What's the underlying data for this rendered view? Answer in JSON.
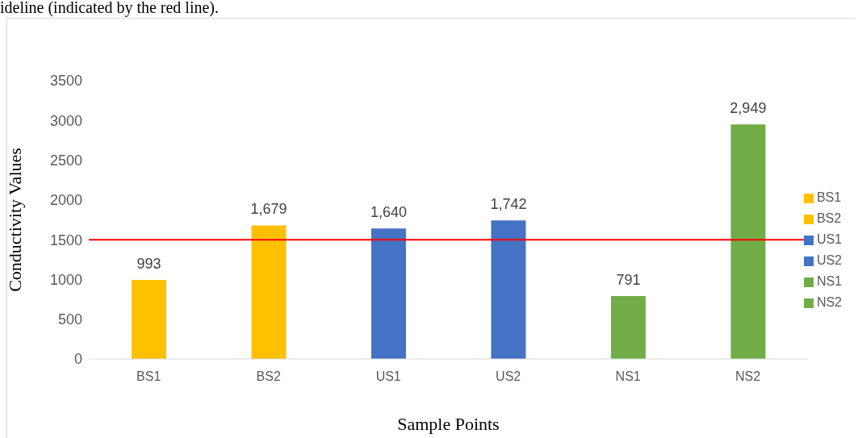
{
  "chart_data": {
    "type": "bar",
    "xlabel": "Sample Points",
    "ylabel": "Conductivity Values",
    "annotations": [
      "ideline (indicated by the red line)."
    ],
    "categories": [
      "BS1",
      "BS2",
      "US1",
      "US2",
      "NS1",
      "NS2"
    ],
    "stacked": true,
    "series": [
      {
        "name": "BS1",
        "color": "#ffc000",
        "values": [
          993,
          null,
          null,
          null,
          null,
          null
        ],
        "value_labels": [
          "993",
          null,
          null,
          null,
          null,
          null
        ]
      },
      {
        "name": "BS2",
        "color": "#ffc000",
        "values": [
          null,
          1679,
          null,
          null,
          null,
          null
        ],
        "value_labels": [
          null,
          "1,679",
          null,
          null,
          null,
          null
        ]
      },
      {
        "name": "US1",
        "color": "#4472c4",
        "values": [
          null,
          null,
          1640,
          null,
          null,
          null
        ],
        "value_labels": [
          null,
          null,
          "1,640",
          null,
          null,
          null
        ]
      },
      {
        "name": "US2",
        "color": "#4472c4",
        "values": [
          null,
          null,
          null,
          1742,
          null,
          null
        ],
        "value_labels": [
          null,
          null,
          null,
          "1,742",
          null,
          null
        ]
      },
      {
        "name": "NS1",
        "color": "#70ad47",
        "values": [
          null,
          null,
          null,
          null,
          791,
          null
        ],
        "value_labels": [
          null,
          null,
          null,
          null,
          "791",
          null
        ]
      },
      {
        "name": "NS2",
        "color": "#70ad47",
        "values": [
          null,
          null,
          null,
          null,
          null,
          2949
        ],
        "value_labels": [
          null,
          null,
          null,
          null,
          null,
          "2,949"
        ]
      }
    ],
    "ylim": [
      0,
      3500
    ],
    "yticks": [
      0,
      500,
      1000,
      1500,
      2000,
      2500,
      3000,
      3500
    ],
    "ref_lines": [
      {
        "axis": "y",
        "value": 1500,
        "color": "#ff0000"
      }
    ],
    "legend": "right"
  }
}
